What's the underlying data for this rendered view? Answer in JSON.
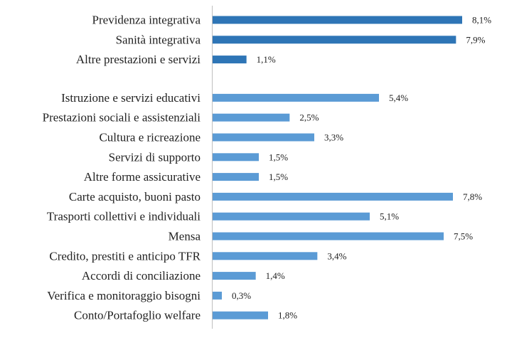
{
  "chart_data": {
    "type": "bar",
    "orientation": "horizontal",
    "title": "",
    "xlabel": "",
    "ylabel": "",
    "xlim": [
      0,
      8.1
    ],
    "grid": false,
    "legend": "none",
    "value_suffix": "%",
    "groups": [
      {
        "color": "#2e75b6",
        "categories": [
          "Previdenza integrativa",
          "Sanità integrativa",
          "Altre prestazioni e servizi"
        ],
        "values": [
          8.1,
          7.9,
          1.1
        ],
        "labels": [
          "8,1%",
          "7,9%",
          "1,1%"
        ]
      },
      {
        "color": "#5b9bd5",
        "categories": [
          "Istruzione e servizi educativi ",
          "Prestazioni sociali e assistenziali",
          "Cultura e ricreazione",
          "Servizi di supporto ",
          "Altre forme assicurative",
          "Carte acquisto, buoni pasto",
          "Trasporti collettivi e individuali",
          "Mensa ",
          "Credito, prestiti e anticipo TFR",
          "Accordi di conciliazione",
          "Verifica e monitoraggio bisogni",
          "Conto/Portafoglio welfare"
        ],
        "values": [
          5.4,
          2.5,
          3.3,
          1.5,
          1.5,
          7.8,
          5.1,
          7.5,
          3.4,
          1.4,
          0.3,
          1.8
        ],
        "labels": [
          "5,4%",
          "2,5%",
          "3,3%",
          "1,5%",
          "1,5%",
          "7,8%",
          "5,1%",
          "7,5%",
          "3,4%",
          "1,4%",
          "0,3%",
          "1,8%"
        ]
      }
    ]
  }
}
